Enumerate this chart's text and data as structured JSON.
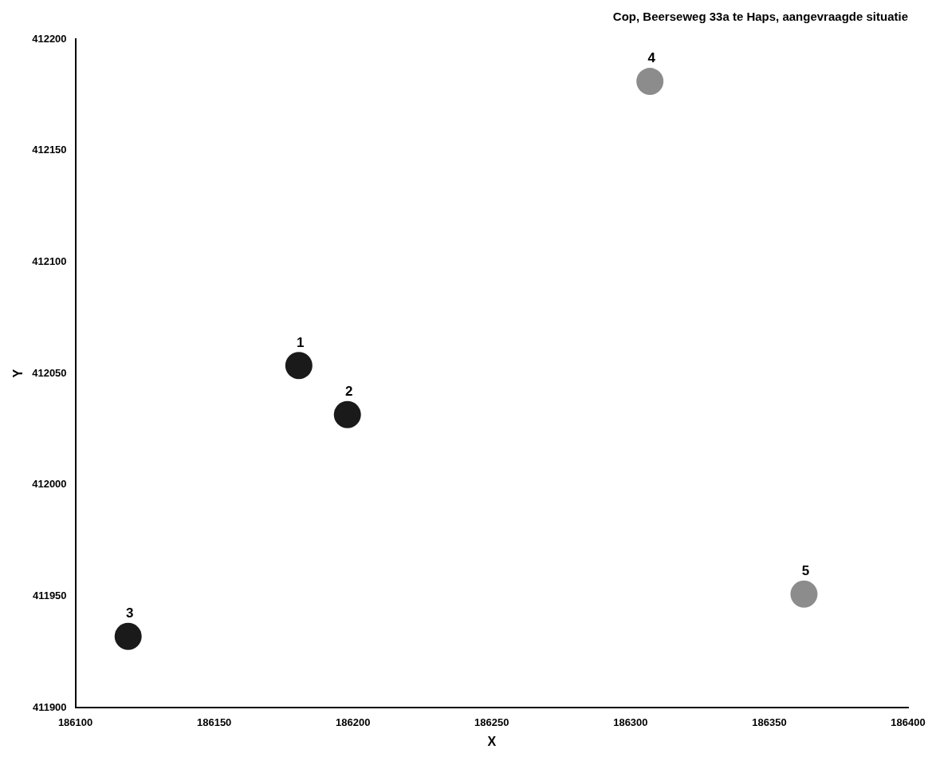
{
  "chart_data": {
    "type": "scatter",
    "title": "Cop, Beerseweg 33a te Haps, aangevraagde situatie",
    "xlabel": "X",
    "ylabel": "Y",
    "x": [
      186180.5,
      186198,
      186119,
      186307,
      186362.5
    ],
    "values": [
      412053.5,
      412031.5,
      411932,
      412181,
      411951
    ],
    "colors": [
      "#1a1a1a",
      "#1a1a1a",
      "#1a1a1a",
      "#8c8c8c",
      "#8c8c8c"
    ],
    "annotations": [
      {
        "text": "1",
        "x": 186180.5,
        "y": 412053.5
      },
      {
        "text": "2",
        "x": 186198,
        "y": 412031.5
      },
      {
        "text": "3",
        "x": 186119,
        "y": 411932
      },
      {
        "text": "4",
        "x": 186307,
        "y": 412181
      },
      {
        "text": "5",
        "x": 186362.5,
        "y": 411951
      }
    ],
    "marker": "circle",
    "xlim": [
      186100,
      186400
    ],
    "xticks": [
      186100,
      186150,
      186200,
      186250,
      186300,
      186350,
      186400
    ],
    "ylim": [
      411900,
      412200
    ],
    "yticks": [
      411900,
      411950,
      412000,
      412050,
      412100,
      412150,
      412200
    ],
    "grid": false,
    "legend": false
  }
}
